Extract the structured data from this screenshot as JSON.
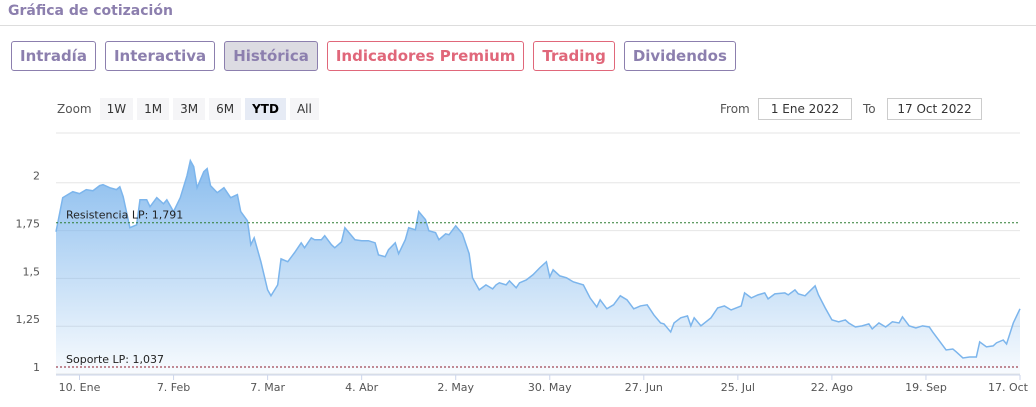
{
  "header": {
    "title": "Gráfica de cotización"
  },
  "tabs": [
    {
      "label": "Intradía",
      "color": "#8c7fae"
    },
    {
      "label": "Interactiva",
      "color": "#8c7fae"
    },
    {
      "label": "Histórica",
      "color": "#8c7fae"
    },
    {
      "label": "Indicadores Premium",
      "color": "#e0677a"
    },
    {
      "label": "Trading",
      "color": "#e0677a"
    },
    {
      "label": "Dividendos",
      "color": "#8c7fae"
    }
  ],
  "active_tab": 2,
  "range_selector": {
    "zoom_label": "Zoom",
    "buttons": [
      "1W",
      "1M",
      "3M",
      "6M",
      "YTD",
      "All"
    ],
    "selected": 4,
    "from_label": "From",
    "from": "1 Ene 2022",
    "to_label": "To",
    "to": "17 Oct 2022"
  },
  "chart_data": {
    "type": "area",
    "color": "#7cb5ec",
    "grid": true,
    "x": [
      3,
      5,
      7,
      8,
      10,
      12,
      14,
      16,
      17,
      19,
      21,
      22,
      23,
      25,
      27,
      28,
      30,
      31,
      33,
      35,
      36,
      38,
      40,
      42,
      43,
      44,
      45,
      47,
      48,
      49,
      51,
      53,
      55,
      57,
      58,
      60,
      61,
      62,
      64,
      66,
      67,
      69,
      70,
      72,
      74,
      76,
      77,
      79,
      80,
      82,
      83,
      85,
      86,
      88,
      89,
      91,
      92,
      94,
      96,
      98,
      99,
      101,
      102,
      104,
      105,
      107,
      108,
      110,
      111,
      113,
      114,
      116,
      117,
      119,
      120,
      122,
      124,
      126,
      127,
      129,
      131,
      133,
      134,
      135,
      137,
      138,
      140,
      141,
      143,
      145,
      147,
      149,
      150,
      151,
      153,
      155,
      157,
      160,
      162,
      164,
      165,
      167,
      169,
      171,
      173,
      175,
      177,
      179,
      181,
      183,
      184,
      186,
      187,
      189,
      191,
      192,
      193,
      195,
      198,
      200,
      202,
      204,
      207,
      208,
      210,
      212,
      214,
      215,
      217,
      220,
      221,
      223,
      224,
      226,
      229,
      230,
      232,
      234,
      236,
      238,
      239,
      241,
      243,
      245,
      246,
      248,
      250,
      252,
      254,
      255,
      257,
      259,
      261,
      263,
      264,
      266,
      268,
      270,
      271,
      273,
      275,
      277,
      278,
      280,
      282,
      283,
      285,
      286,
      288,
      290
    ],
    "values": [
      1.744,
      1.922,
      1.943,
      1.953,
      1.943,
      1.964,
      1.958,
      1.985,
      1.99,
      1.974,
      1.964,
      1.979,
      1.927,
      1.765,
      1.78,
      1.911,
      1.911,
      1.875,
      1.922,
      1.89,
      1.911,
      1.849,
      1.922,
      2.037,
      2.116,
      2.084,
      1.974,
      2.058,
      2.074,
      1.985,
      1.948,
      1.974,
      1.922,
      1.938,
      1.849,
      1.801,
      1.676,
      1.712,
      1.587,
      1.44,
      1.409,
      1.466,
      1.602,
      1.587,
      1.634,
      1.686,
      1.66,
      1.712,
      1.702,
      1.702,
      1.723,
      1.676,
      1.66,
      1.691,
      1.765,
      1.723,
      1.702,
      1.697,
      1.697,
      1.686,
      1.623,
      1.613,
      1.65,
      1.686,
      1.629,
      1.702,
      1.765,
      1.754,
      1.849,
      1.807,
      1.749,
      1.739,
      1.702,
      1.733,
      1.728,
      1.775,
      1.733,
      1.629,
      1.503,
      1.44,
      1.466,
      1.445,
      1.466,
      1.477,
      1.466,
      1.487,
      1.451,
      1.477,
      1.492,
      1.519,
      1.555,
      1.587,
      1.508,
      1.545,
      1.513,
      1.503,
      1.482,
      1.466,
      1.398,
      1.351,
      1.388,
      1.341,
      1.362,
      1.409,
      1.388,
      1.341,
      1.356,
      1.362,
      1.309,
      1.267,
      1.262,
      1.22,
      1.267,
      1.294,
      1.304,
      1.252,
      1.294,
      1.252,
      1.294,
      1.346,
      1.356,
      1.335,
      1.356,
      1.424,
      1.398,
      1.414,
      1.424,
      1.393,
      1.419,
      1.424,
      1.414,
      1.44,
      1.419,
      1.409,
      1.461,
      1.414,
      1.346,
      1.283,
      1.273,
      1.283,
      1.267,
      1.246,
      1.252,
      1.262,
      1.236,
      1.267,
      1.246,
      1.273,
      1.267,
      1.299,
      1.252,
      1.241,
      1.252,
      1.246,
      1.22,
      1.173,
      1.126,
      1.131,
      1.116,
      1.084,
      1.089,
      1.089,
      1.168,
      1.142,
      1.147,
      1.163,
      1.178,
      1.157,
      1.267,
      1.341
    ],
    "xlim": [
      3,
      290
    ],
    "xticks": [
      {
        "value": 10,
        "label": "10. Ene"
      },
      {
        "value": 38,
        "label": "7. Feb"
      },
      {
        "value": 66,
        "label": "7. Mar"
      },
      {
        "value": 94,
        "label": "4. Abr"
      },
      {
        "value": 122,
        "label": "2. May"
      },
      {
        "value": 150,
        "label": "30. May"
      },
      {
        "value": 178,
        "label": "27. Jun"
      },
      {
        "value": 206,
        "label": "25. Jul"
      },
      {
        "value": 234,
        "label": "22. Ago"
      },
      {
        "value": 262,
        "label": "19. Sep"
      },
      {
        "value": 290,
        "label": "17. Oct"
      }
    ],
    "ylim": [
      0.995,
      2.26
    ],
    "yticks": [
      1,
      {
        "value": 1.25,
        "label": "1,25"
      },
      {
        "value": 1.5,
        "label": "1,5"
      },
      {
        "value": 1.75,
        "label": "1,75"
      },
      2
    ],
    "plot_lines": [
      {
        "label": "Resistencia LP: 1,791",
        "value": 1.791,
        "color": "#2e7d32"
      },
      {
        "label": "Soporte LP: 1,037",
        "value": 1.037,
        "color": "#8b1a2b"
      }
    ]
  }
}
